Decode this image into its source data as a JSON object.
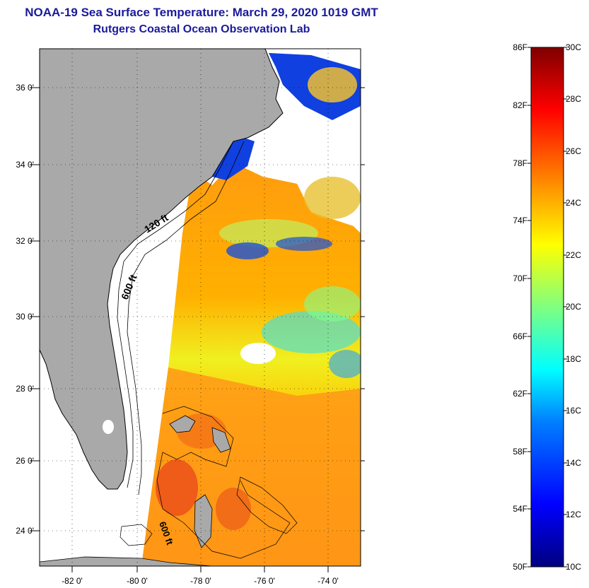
{
  "title": "NOAA-19 Sea Surface Temperature:  March 29, 2020 1019 GMT",
  "subtitle": "Rutgers Coastal Ocean Observation Lab",
  "map": {
    "lat_labels": [
      "36 0'",
      "34 0'",
      "32 0'",
      "30 0'",
      "28 0'",
      "26 0'",
      "24 0'"
    ],
    "lon_labels": [
      "-82 0'",
      "-80 0'",
      "-78 0'",
      "-76 0'",
      "-74 0'"
    ],
    "contour_labels": [
      "120 ft",
      "600 ft",
      "600 ft"
    ],
    "colors": {
      "land": "#a9a9a9",
      "no_data": "#ffffff",
      "border": "#000000"
    }
  },
  "colorbar": {
    "fahrenheit_labels": [
      "86F",
      "82F",
      "78F",
      "74F",
      "70F",
      "66F",
      "62F",
      "58F",
      "54F",
      "50F"
    ],
    "celsius_labels": [
      "30C",
      "28C",
      "26C",
      "24C",
      "22C",
      "20C",
      "18C",
      "16C",
      "14C",
      "12C",
      "10C"
    ],
    "gradient": [
      "#00007f",
      "#0000ff",
      "#0080ff",
      "#00ffff",
      "#80ff80",
      "#ffff00",
      "#ff8000",
      "#ff0000",
      "#7f0000"
    ]
  },
  "title_color": "#1a1a9c"
}
